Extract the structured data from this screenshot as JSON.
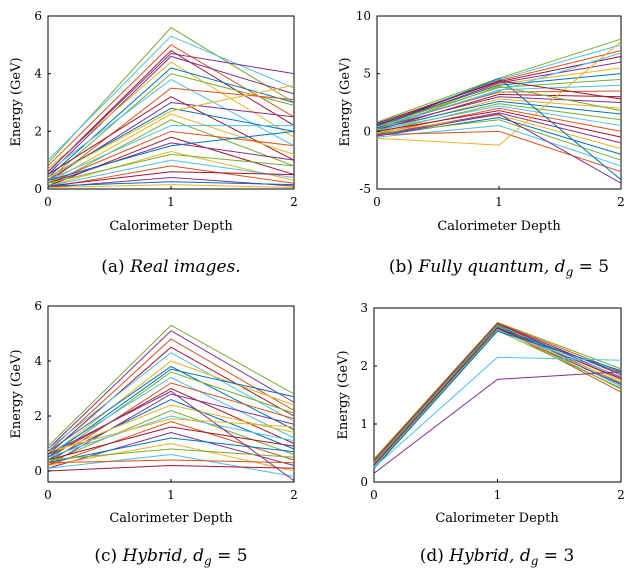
{
  "figure": {
    "panels": [
      {
        "caption_prefix": "(a) ",
        "caption_text": "Real images.",
        "xlabel": "Calorimeter Depth",
        "ylabel": "Energy (GeV)"
      },
      {
        "caption_prefix": "(b) ",
        "caption_text": "Fully quantum, d",
        "caption_sub": "g",
        "caption_eq": " = 5",
        "xlabel": "Calorimeter Depth",
        "ylabel": "Energy (GeV)"
      },
      {
        "caption_prefix": "(c) ",
        "caption_text": "Hybrid, d",
        "caption_sub": "g",
        "caption_eq": " = 5",
        "xlabel": "Calorimeter Depth",
        "ylabel": "Energy (GeV)"
      },
      {
        "caption_prefix": "(d) ",
        "caption_text": "Hybrid, d",
        "caption_sub": "g",
        "caption_eq": " = 3",
        "xlabel": "Calorimeter Depth",
        "ylabel": "Energy (GeV)"
      }
    ]
  },
  "chart_data": [
    {
      "type": "line",
      "panel": "a",
      "x": [
        0,
        1,
        2
      ],
      "xticks": [
        "0",
        "1",
        "2"
      ],
      "yticks": [
        "0",
        "2",
        "4",
        "6"
      ],
      "xlim": [
        0,
        2
      ],
      "ylim": [
        0,
        6
      ],
      "xlabel": "Calorimeter Depth",
      "ylabel": "Energy (GeV)",
      "grid": false,
      "series_count_note_free": true,
      "series": [
        {
          "values": [
            0.9,
            5.6,
            3.0
          ],
          "color": "#77ac30"
        },
        {
          "values": [
            1.0,
            5.3,
            3.5
          ],
          "color": "#4dbeee"
        },
        {
          "values": [
            0.8,
            5.0,
            2.5
          ],
          "color": "#d95319"
        },
        {
          "values": [
            0.6,
            4.8,
            2.2
          ],
          "color": "#a2142f"
        },
        {
          "values": [
            0.5,
            4.6,
            3.3
          ],
          "color": "#7e2f8e"
        },
        {
          "values": [
            0.7,
            4.4,
            1.8
          ],
          "color": "#edb120"
        },
        {
          "values": [
            0.4,
            4.2,
            3.0
          ],
          "color": "#0072bd"
        },
        {
          "values": [
            0.3,
            4.0,
            2.9
          ],
          "color": "#77ac30"
        },
        {
          "values": [
            0.6,
            3.8,
            1.5
          ],
          "color": "#4dbeee"
        },
        {
          "values": [
            0.2,
            3.5,
            3.1
          ],
          "color": "#d95319"
        },
        {
          "values": [
            0.5,
            3.2,
            1.0
          ],
          "color": "#a2142f"
        },
        {
          "values": [
            0.3,
            3.0,
            2.5
          ],
          "color": "#7e2f8e"
        },
        {
          "values": [
            0.4,
            2.8,
            2.0
          ],
          "color": "#0072bd"
        },
        {
          "values": [
            0.2,
            2.6,
            1.2
          ],
          "color": "#edb120"
        },
        {
          "values": [
            0.1,
            2.4,
            0.8
          ],
          "color": "#77ac30"
        },
        {
          "values": [
            0.3,
            2.2,
            2.2
          ],
          "color": "#4dbeee"
        },
        {
          "values": [
            0.2,
            2.0,
            1.5
          ],
          "color": "#d95319"
        },
        {
          "values": [
            0.1,
            1.8,
            0.5
          ],
          "color": "#a2142f"
        },
        {
          "values": [
            0.2,
            1.6,
            1.0
          ],
          "color": "#7e2f8e"
        },
        {
          "values": [
            0.3,
            1.5,
            2.0
          ],
          "color": "#0072bd"
        },
        {
          "values": [
            0.1,
            1.3,
            0.3
          ],
          "color": "#edb120"
        },
        {
          "values": [
            0.2,
            1.2,
            0.8
          ],
          "color": "#77ac30"
        },
        {
          "values": [
            0.1,
            1.0,
            0.4
          ],
          "color": "#4dbeee"
        },
        {
          "values": [
            0.05,
            0.8,
            0.2
          ],
          "color": "#d95319"
        },
        {
          "values": [
            0.1,
            0.6,
            0.5
          ],
          "color": "#a2142f"
        },
        {
          "values": [
            0.05,
            0.4,
            0.1
          ],
          "color": "#7e2f8e"
        },
        {
          "values": [
            0.1,
            0.25,
            0.15
          ],
          "color": "#0072bd"
        },
        {
          "values": [
            0.05,
            0.15,
            0.05
          ],
          "color": "#edb120"
        },
        {
          "values": [
            0.6,
            4.7,
            4.0
          ],
          "color": "#7e2f8e"
        },
        {
          "values": [
            0.4,
            2.7,
            3.6
          ],
          "color": "#edb120"
        }
      ]
    },
    {
      "type": "line",
      "panel": "b",
      "x": [
        0,
        1,
        2
      ],
      "xticks": [
        "0",
        "1",
        "2"
      ],
      "yticks": [
        "-5",
        "0",
        "5",
        "10"
      ],
      "xlim": [
        0,
        2
      ],
      "ylim": [
        -5,
        10
      ],
      "xlabel": "Calorimeter Depth",
      "ylabel": "Energy (GeV)",
      "grid": false,
      "series": [
        {
          "values": [
            0.8,
            4.6,
            8.0
          ],
          "color": "#77ac30"
        },
        {
          "values": [
            0.6,
            4.5,
            7.5
          ],
          "color": "#4dbeee"
        },
        {
          "values": [
            0.5,
            4.4,
            7.0
          ],
          "color": "#d95319"
        },
        {
          "values": [
            0.7,
            4.3,
            6.5
          ],
          "color": "#a2142f"
        },
        {
          "values": [
            0.4,
            4.2,
            6.0
          ],
          "color": "#7e2f8e"
        },
        {
          "values": [
            0.3,
            4.1,
            5.5
          ],
          "color": "#edb120"
        },
        {
          "values": [
            0.6,
            4.0,
            5.0
          ],
          "color": "#0072bd"
        },
        {
          "values": [
            0.5,
            3.8,
            4.5
          ],
          "color": "#77ac30"
        },
        {
          "values": [
            0.2,
            3.6,
            4.0
          ],
          "color": "#4dbeee"
        },
        {
          "values": [
            0.4,
            3.4,
            3.5
          ],
          "color": "#d95319"
        },
        {
          "values": [
            0.1,
            3.2,
            3.0
          ],
          "color": "#a2142f"
        },
        {
          "values": [
            0.3,
            3.0,
            2.5
          ],
          "color": "#7e2f8e"
        },
        {
          "values": [
            0.0,
            2.8,
            2.0
          ],
          "color": "#edb120"
        },
        {
          "values": [
            0.2,
            2.6,
            1.5
          ],
          "color": "#0072bd"
        },
        {
          "values": [
            -0.1,
            2.4,
            1.0
          ],
          "color": "#77ac30"
        },
        {
          "values": [
            0.1,
            2.2,
            0.5
          ],
          "color": "#4dbeee"
        },
        {
          "values": [
            -0.2,
            2.0,
            0.0
          ],
          "color": "#d95319"
        },
        {
          "values": [
            0.0,
            1.8,
            -0.5
          ],
          "color": "#a2142f"
        },
        {
          "values": [
            -0.3,
            1.6,
            -1.0
          ],
          "color": "#7e2f8e"
        },
        {
          "values": [
            -0.1,
            1.4,
            -1.5
          ],
          "color": "#edb120"
        },
        {
          "values": [
            -0.4,
            1.2,
            -2.0
          ],
          "color": "#0072bd"
        },
        {
          "values": [
            -0.2,
            1.0,
            -2.5
          ],
          "color": "#77ac30"
        },
        {
          "values": [
            -0.5,
            0.5,
            -3.0
          ],
          "color": "#4dbeee"
        },
        {
          "values": [
            -0.3,
            0.0,
            -3.5
          ],
          "color": "#d95319"
        },
        {
          "values": [
            -0.6,
            -1.2,
            7.8
          ],
          "color": "#edb120"
        },
        {
          "values": [
            -0.4,
            1.5,
            -4.5
          ],
          "color": "#7e2f8e"
        },
        {
          "values": [
            0.3,
            4.6,
            -4.2
          ],
          "color": "#0072bd"
        },
        {
          "values": [
            0.5,
            4.4,
            2.8
          ],
          "color": "#a2142f"
        },
        {
          "values": [
            0.2,
            3.9,
            1.8
          ],
          "color": "#77ac30"
        },
        {
          "values": [
            0.4,
            3.5,
            6.8
          ],
          "color": "#4dbeee"
        }
      ]
    },
    {
      "type": "line",
      "panel": "c",
      "x": [
        0,
        1,
        2
      ],
      "xticks": [
        "0",
        "1",
        "2"
      ],
      "yticks": [
        "0",
        "2",
        "4",
        "6"
      ],
      "xlim": [
        0,
        2
      ],
      "ylim": [
        -0.4,
        6
      ],
      "xlabel": "Calorimeter Depth",
      "ylabel": "Energy (GeV)",
      "grid": false,
      "series": [
        {
          "values": [
            0.9,
            5.3,
            2.8
          ],
          "color": "#77ac30"
        },
        {
          "values": [
            0.8,
            5.1,
            2.5
          ],
          "color": "#7e2f8e"
        },
        {
          "values": [
            0.7,
            4.8,
            2.2
          ],
          "color": "#d95319"
        },
        {
          "values": [
            0.6,
            4.5,
            2.0
          ],
          "color": "#a2142f"
        },
        {
          "values": [
            0.8,
            4.3,
            1.8
          ],
          "color": "#4dbeee"
        },
        {
          "values": [
            0.5,
            4.0,
            2.4
          ],
          "color": "#edb120"
        },
        {
          "values": [
            0.7,
            3.8,
            1.5
          ],
          "color": "#0072bd"
        },
        {
          "values": [
            0.4,
            3.6,
            2.1
          ],
          "color": "#77ac30"
        },
        {
          "values": [
            0.6,
            3.4,
            1.2
          ],
          "color": "#4dbeee"
        },
        {
          "values": [
            0.3,
            3.2,
            1.9
          ],
          "color": "#d95319"
        },
        {
          "values": [
            0.5,
            3.0,
            1.0
          ],
          "color": "#a2142f"
        },
        {
          "values": [
            0.2,
            2.8,
            1.7
          ],
          "color": "#7e2f8e"
        },
        {
          "values": [
            0.4,
            2.6,
            0.8
          ],
          "color": "#0072bd"
        },
        {
          "values": [
            0.6,
            2.4,
            1.4
          ],
          "color": "#edb120"
        },
        {
          "values": [
            0.3,
            2.2,
            0.6
          ],
          "color": "#77ac30"
        },
        {
          "values": [
            0.5,
            2.0,
            1.1
          ],
          "color": "#4dbeee"
        },
        {
          "values": [
            0.2,
            1.8,
            0.4
          ],
          "color": "#d95319"
        },
        {
          "values": [
            0.4,
            1.6,
            0.9
          ],
          "color": "#a2142f"
        },
        {
          "values": [
            0.1,
            1.4,
            0.2
          ],
          "color": "#7e2f8e"
        },
        {
          "values": [
            0.3,
            1.2,
            0.7
          ],
          "color": "#0072bd"
        },
        {
          "values": [
            0.2,
            1.0,
            0.0
          ],
          "color": "#edb120"
        },
        {
          "values": [
            0.4,
            0.8,
            0.5
          ],
          "color": "#77ac30"
        },
        {
          "values": [
            0.1,
            0.6,
            -0.2
          ],
          "color": "#4dbeee"
        },
        {
          "values": [
            0.3,
            0.4,
            0.3
          ],
          "color": "#d95319"
        },
        {
          "values": [
            0.0,
            0.2,
            0.1
          ],
          "color": "#a2142f"
        },
        {
          "values": [
            0.6,
            2.9,
            -0.35
          ],
          "color": "#7e2f8e"
        },
        {
          "values": [
            0.5,
            3.7,
            2.7
          ],
          "color": "#0072bd"
        },
        {
          "values": [
            0.7,
            1.9,
            1.6
          ],
          "color": "#edb120"
        }
      ]
    },
    {
      "type": "line",
      "panel": "d",
      "x": [
        0,
        1,
        2
      ],
      "xticks": [
        "0",
        "1",
        "2"
      ],
      "yticks": [
        "0",
        "1",
        "2",
        "3"
      ],
      "xlim": [
        0,
        2
      ],
      "ylim": [
        0,
        3
      ],
      "xlabel": "Calorimeter Depth",
      "ylabel": "Energy (GeV)",
      "grid": false,
      "series": [
        {
          "values": [
            0.4,
            2.75,
            1.95
          ],
          "color": "#77ac30"
        },
        {
          "values": [
            0.38,
            2.74,
            1.9
          ],
          "color": "#d95319"
        },
        {
          "values": [
            0.36,
            2.73,
            1.85
          ],
          "color": "#a2142f"
        },
        {
          "values": [
            0.35,
            2.72,
            1.8
          ],
          "color": "#7e2f8e"
        },
        {
          "values": [
            0.34,
            2.71,
            1.75
          ],
          "color": "#edb120"
        },
        {
          "values": [
            0.33,
            2.7,
            1.7
          ],
          "color": "#0072bd"
        },
        {
          "values": [
            0.32,
            2.69,
            1.65
          ],
          "color": "#4dbeee"
        },
        {
          "values": [
            0.31,
            2.68,
            1.6
          ],
          "color": "#77ac30"
        },
        {
          "values": [
            0.3,
            2.67,
            1.55
          ],
          "color": "#d95319"
        },
        {
          "values": [
            0.29,
            2.66,
            1.88
          ],
          "color": "#0072bd"
        },
        {
          "values": [
            0.28,
            2.65,
            1.78
          ],
          "color": "#a2142f"
        },
        {
          "values": [
            0.27,
            2.64,
            1.68
          ],
          "color": "#7e2f8e"
        },
        {
          "values": [
            0.26,
            2.63,
            1.72
          ],
          "color": "#edb120"
        },
        {
          "values": [
            0.25,
            2.62,
            1.82
          ],
          "color": "#4dbeee"
        },
        {
          "values": [
            0.24,
            2.61,
            1.62
          ],
          "color": "#77ac30"
        },
        {
          "values": [
            0.23,
            2.6,
            1.92
          ],
          "color": "#0072bd"
        },
        {
          "values": [
            0.25,
            2.15,
            2.1
          ],
          "color": "#4dbeee"
        },
        {
          "values": [
            0.15,
            1.77,
            1.9
          ],
          "color": "#7e2f8e"
        }
      ]
    }
  ]
}
